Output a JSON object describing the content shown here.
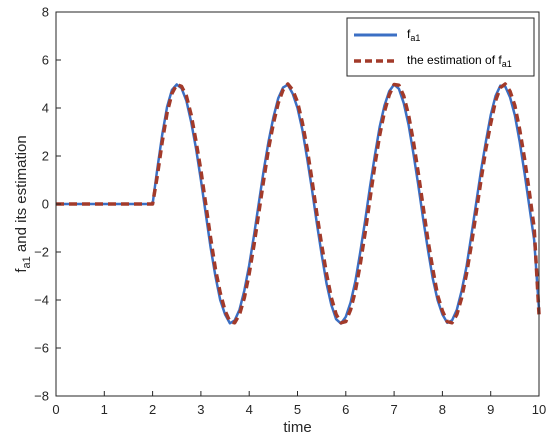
{
  "chart_data": {
    "type": "line",
    "xlabel": "time",
    "ylabel": {
      "base": "f",
      "subscript": "a1",
      "rest": " and its estimation"
    },
    "xlim": [
      0,
      10
    ],
    "ylim": [
      -8,
      8
    ],
    "xticks": [
      "0",
      "1",
      "2",
      "3",
      "4",
      "5",
      "6",
      "7",
      "8",
      "9",
      "10"
    ],
    "yticks": [
      "-8",
      "-6",
      "-4",
      "-2",
      "0",
      "2",
      "4",
      "6",
      "8"
    ],
    "grid": false,
    "legend_position": "top-right",
    "series": [
      {
        "legend_base": "f",
        "legend_sub": "a1",
        "color": "#3b6fc4",
        "style": "solid",
        "x": [
          0,
          2.0,
          2.1,
          2.2,
          2.3,
          2.4,
          2.5,
          2.6,
          2.7,
          2.8,
          2.9,
          3.0,
          3.1,
          3.2,
          3.3,
          3.4,
          3.5,
          3.6,
          3.7,
          3.8,
          3.9,
          4.0,
          4.1,
          4.2,
          4.3,
          4.4,
          4.5,
          4.6,
          4.7,
          4.8,
          4.9,
          5.0,
          5.1,
          5.2,
          5.3,
          5.4,
          5.5,
          5.6,
          5.7,
          5.8,
          5.9,
          6.0,
          6.1,
          6.2,
          6.3,
          6.4,
          6.5,
          6.6,
          6.7,
          6.8,
          6.9,
          7.0,
          7.1,
          7.2,
          7.3,
          7.4,
          7.5,
          7.6,
          7.7,
          7.8,
          7.9,
          8.0,
          8.1,
          8.2,
          8.3,
          8.4,
          8.5,
          8.6,
          8.7,
          8.8,
          8.9,
          9.0,
          9.1,
          9.2,
          9.3,
          9.4,
          9.5,
          9.6,
          9.7,
          9.8,
          9.9,
          10.0
        ],
        "y": [
          0,
          0,
          1.5,
          2.9,
          4.05,
          4.75,
          4.98,
          4.82,
          4.3,
          3.4,
          2.3,
          1.0,
          -0.4,
          -1.8,
          -3.0,
          -4.0,
          -4.6,
          -4.97,
          -4.85,
          -4.4,
          -3.6,
          -2.55,
          -1.3,
          0.05,
          1.4,
          2.6,
          3.6,
          4.4,
          4.85,
          4.97,
          4.6,
          4.0,
          3.1,
          1.9,
          0.6,
          -0.8,
          -2.1,
          -3.3,
          -4.2,
          -4.8,
          -4.98,
          -4.7,
          -4.1,
          -3.2,
          -2.0,
          -0.7,
          0.7,
          2.0,
          3.2,
          4.1,
          4.7,
          4.98,
          4.8,
          4.2,
          3.3,
          2.1,
          0.8,
          -0.6,
          -1.9,
          -3.1,
          -4.0,
          -4.6,
          -4.95,
          -4.85,
          -4.4,
          -3.6,
          -2.6,
          -1.3,
          0.05,
          1.4,
          2.6,
          3.7,
          4.5,
          4.93,
          4.9,
          4.45,
          3.7,
          2.6,
          1.3,
          -0.1,
          -1.5,
          -4.4
        ]
      },
      {
        "legend_base": "the estimation of f",
        "legend_sub": "a1",
        "color": "#a23a2a",
        "style": "dashed",
        "x": [
          0,
          2.0,
          2.1,
          2.2,
          2.3,
          2.4,
          2.5,
          2.6,
          2.7,
          2.8,
          2.9,
          3.0,
          3.1,
          3.2,
          3.3,
          3.4,
          3.5,
          3.6,
          3.7,
          3.8,
          3.9,
          4.0,
          4.1,
          4.2,
          4.3,
          4.4,
          4.5,
          4.6,
          4.7,
          4.8,
          4.9,
          5.0,
          5.1,
          5.2,
          5.3,
          5.4,
          5.5,
          5.6,
          5.7,
          5.8,
          5.9,
          6.0,
          6.1,
          6.2,
          6.3,
          6.4,
          6.5,
          6.6,
          6.7,
          6.8,
          6.9,
          7.0,
          7.1,
          7.2,
          7.3,
          7.4,
          7.5,
          7.6,
          7.7,
          7.8,
          7.9,
          8.0,
          8.1,
          8.2,
          8.3,
          8.4,
          8.5,
          8.6,
          8.7,
          8.8,
          8.9,
          9.0,
          9.1,
          9.2,
          9.3,
          9.4,
          9.5,
          9.6,
          9.7,
          9.8,
          9.9,
          10.0
        ],
        "y": [
          0,
          0,
          1.2,
          2.6,
          3.8,
          4.6,
          4.98,
          4.9,
          4.5,
          3.7,
          2.6,
          1.4,
          0.0,
          -1.4,
          -2.7,
          -3.7,
          -4.45,
          -4.9,
          -4.95,
          -4.6,
          -3.9,
          -2.9,
          -1.7,
          -0.35,
          1.0,
          2.3,
          3.35,
          4.2,
          4.75,
          5.0,
          4.75,
          4.25,
          3.4,
          2.3,
          1.0,
          -0.4,
          -1.7,
          -2.9,
          -3.9,
          -4.6,
          -4.95,
          -4.9,
          -4.4,
          -3.6,
          -2.5,
          -1.2,
          0.2,
          1.6,
          2.85,
          3.85,
          4.55,
          4.98,
          4.95,
          4.5,
          3.7,
          2.6,
          1.3,
          -0.1,
          -1.5,
          -2.7,
          -3.8,
          -4.45,
          -4.9,
          -4.95,
          -4.6,
          -3.9,
          -2.9,
          -1.7,
          -0.35,
          1.0,
          2.3,
          3.35,
          4.3,
          4.85,
          5.0,
          4.7,
          4.1,
          3.1,
          1.9,
          0.5,
          -1.0,
          -4.6
        ]
      }
    ]
  }
}
